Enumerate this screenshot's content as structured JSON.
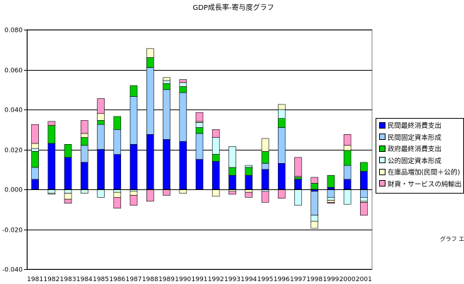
{
  "chart_data": {
    "type": "bar",
    "stacked": true,
    "title": "GDP成長率-寄与度グラフ",
    "xlabel": "",
    "ylabel": "",
    "ylim": [
      -0.04,
      0.08
    ],
    "y_ticks": [
      "0.080",
      "0.060",
      "0.040",
      "0.020",
      "0.000",
      "-0.020",
      "-0.040"
    ],
    "grid": true,
    "legend_position": "right",
    "categories": [
      "1981",
      "1982",
      "1983",
      "1984",
      "1985",
      "1986",
      "1987",
      "1988",
      "1989",
      "1990",
      "1991",
      "1992",
      "1993",
      "1994",
      "1995",
      "1996",
      "1997",
      "1998",
      "1999",
      "2000",
      "2001"
    ],
    "series": [
      {
        "name": "民間最終消費支出",
        "color": "#0000ff",
        "values": [
          0.005,
          0.023,
          0.016,
          0.0135,
          0.02,
          0.0175,
          0.0225,
          0.0275,
          0.025,
          0.024,
          0.015,
          0.014,
          0.007,
          0.007,
          0.01,
          0.013,
          0.005,
          -0.001,
          0.001,
          0.005,
          0.009
        ]
      },
      {
        "name": "民間固定資本形成",
        "color": "#99ccff",
        "values": [
          0.006,
          0.0,
          0.0,
          0.0085,
          0.0125,
          0.0125,
          0.024,
          0.0335,
          0.025,
          0.0245,
          0.013,
          0.0,
          0.0,
          0.0,
          0.003,
          0.018,
          0.0,
          -0.012,
          -0.004,
          0.007,
          -0.004
        ]
      },
      {
        "name": "政府最終消費支出",
        "color": "#00cc00",
        "values": [
          0.008,
          0.009,
          0.0065,
          0.004,
          0.002,
          0.0065,
          0.0055,
          0.005,
          0.003,
          0.003,
          0.003,
          0.0035,
          0.004,
          0.004,
          0.006,
          0.0045,
          0.001,
          0.003,
          0.006,
          0.0075,
          0.0045
        ]
      },
      {
        "name": "公的固定資本形成",
        "color": "#ccffff",
        "values": [
          0.0015,
          -0.002,
          -0.002,
          -0.002,
          -0.004,
          -0.0015,
          -0.001,
          0.0,
          0.0015,
          0.002,
          0.0025,
          0.0085,
          0.0105,
          0.001,
          -0.001,
          0.0045,
          -0.008,
          -0.003,
          -0.0015,
          -0.0075,
          -0.002
        ]
      },
      {
        "name": "在庫品増加(民間＋公的)",
        "color": "#ffffcc",
        "values": [
          0.0025,
          -0.0005,
          -0.003,
          0.002,
          0.0035,
          -0.0025,
          -0.002,
          0.0045,
          0.0015,
          -0.002,
          0.0005,
          -0.0035,
          -0.001,
          -0.0015,
          0.0065,
          0.0025,
          0.0005,
          -0.0035,
          -0.001,
          0.0025,
          -0.0005
        ]
      },
      {
        "name": "財貨・サービスの純輸出",
        "color": "#ff99cc",
        "values": [
          0.0095,
          0.002,
          -0.002,
          0.0065,
          0.0075,
          -0.0055,
          -0.005,
          -0.006,
          -0.003,
          0.0015,
          0.0045,
          0.004,
          -0.0015,
          -0.0025,
          -0.0055,
          -0.0045,
          0.0095,
          0.003,
          -0.0005,
          0.0055,
          -0.0065
        ]
      }
    ]
  },
  "ui": {
    "area_tag": "グラフ エリ"
  }
}
